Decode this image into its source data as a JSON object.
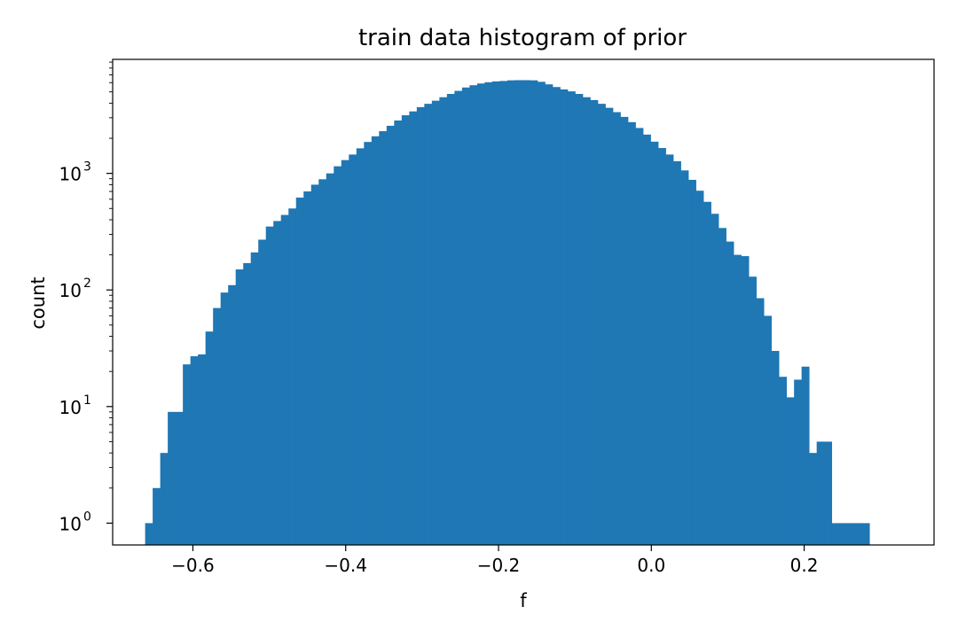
{
  "chart_data": {
    "type": "bar",
    "title": "train data histogram of prior",
    "xlabel": "f",
    "ylabel": "count",
    "y_scale": "log",
    "xlim": [
      -0.705,
      0.37
    ],
    "ylim": [
      0.65,
      9500
    ],
    "grid": false,
    "bar_color": "#1f77b4",
    "x_ticks": [
      {
        "value": -0.6,
        "label": "−0.6"
      },
      {
        "value": -0.4,
        "label": "−0.4"
      },
      {
        "value": -0.2,
        "label": "−0.2"
      },
      {
        "value": 0.0,
        "label": "0.0"
      },
      {
        "value": 0.2,
        "label": "0.2"
      }
    ],
    "y_ticks": [
      {
        "value": 1,
        "base": "10",
        "exponent": "0"
      },
      {
        "value": 10,
        "base": "10",
        "exponent": "1"
      },
      {
        "value": 100,
        "base": "10",
        "exponent": "2"
      },
      {
        "value": 1000,
        "base": "10",
        "exponent": "3"
      }
    ],
    "bin_start": -0.6625,
    "bin_width": 0.009875,
    "counts": [
      1,
      2,
      4,
      9,
      9,
      23,
      27,
      28,
      44,
      70,
      95,
      110,
      150,
      170,
      210,
      270,
      350,
      390,
      440,
      500,
      620,
      700,
      800,
      890,
      1000,
      1150,
      1300,
      1450,
      1640,
      1860,
      2080,
      2300,
      2560,
      2840,
      3150,
      3400,
      3700,
      3950,
      4200,
      4500,
      4800,
      5100,
      5450,
      5700,
      5900,
      6050,
      6150,
      6200,
      6280,
      6300,
      6300,
      6280,
      6100,
      5800,
      5500,
      5250,
      5050,
      4800,
      4500,
      4250,
      3950,
      3650,
      3350,
      3050,
      2750,
      2450,
      2150,
      1870,
      1650,
      1450,
      1270,
      1060,
      880,
      710,
      570,
      450,
      340,
      260,
      200,
      195,
      130,
      85,
      60,
      30,
      18,
      12,
      17,
      22,
      4,
      5,
      5,
      1,
      1,
      1,
      1,
      1
    ]
  }
}
